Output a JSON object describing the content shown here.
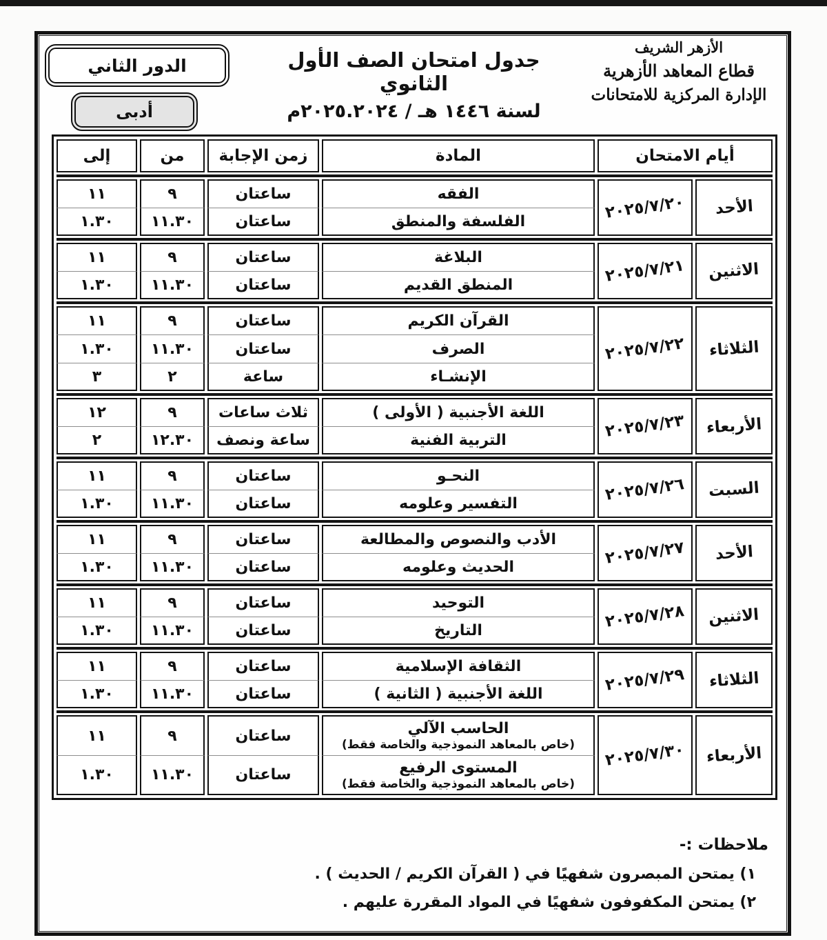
{
  "page": {
    "round_label": "الدور الثاني",
    "track_label": "أدبى",
    "title_line1": "جدول امتحان الصف الأول الثانوي",
    "title_line2": "لسنة ١٤٤٦ هـ / ٢٠٢٥.٢٠٢٤م",
    "org": {
      "line1": "الأزهر الشريف",
      "line2": "قطاع المعاهد الأزهرية",
      "line3": "الإدارة المركزية للامتحانات"
    }
  },
  "table": {
    "headers": {
      "days": "أيام الامتحان",
      "subject": "المادة",
      "duration": "زمن الإجابة",
      "from": "من",
      "to": "إلى"
    },
    "groups": [
      {
        "day": "الأحد",
        "date": "٢٠٢٥/٧/٢٠",
        "rows": [
          {
            "subject": "الفقه",
            "duration": "ساعتان",
            "from": "٩",
            "to": "١١"
          },
          {
            "subject": "الفلسفة والمنطق",
            "duration": "ساعتان",
            "from": "١١.٣٠",
            "to": "١.٣٠"
          }
        ]
      },
      {
        "day": "الاثنين",
        "date": "٢٠٢٥/٧/٢١",
        "rows": [
          {
            "subject": "البلاغة",
            "duration": "ساعتان",
            "from": "٩",
            "to": "١١"
          },
          {
            "subject": "المنطق القديم",
            "duration": "ساعتان",
            "from": "١١.٣٠",
            "to": "١.٣٠"
          }
        ]
      },
      {
        "day": "الثلاثاء",
        "date": "٢٠٢٥/٧/٢٢",
        "rows": [
          {
            "subject": "القرآن الكريم",
            "duration": "ساعتان",
            "from": "٩",
            "to": "١١"
          },
          {
            "subject": "الصرف",
            "duration": "ساعتان",
            "from": "١١.٣٠",
            "to": "١.٣٠"
          },
          {
            "subject": "الإنشـاء",
            "duration": "ساعة",
            "from": "٢",
            "to": "٣"
          }
        ]
      },
      {
        "day": "الأربعاء",
        "date": "٢٠٢٥/٧/٢٣",
        "rows": [
          {
            "subject": "اللغة الأجنبية ( الأولى )",
            "duration": "ثلاث ساعات",
            "from": "٩",
            "to": "١٢"
          },
          {
            "subject": "التربية الفنية",
            "duration": "ساعة ونصف",
            "from": "١٢.٣٠",
            "to": "٢"
          }
        ]
      },
      {
        "day": "السبت",
        "date": "٢٠٢٥/٧/٢٦",
        "rows": [
          {
            "subject": "النحـو",
            "duration": "ساعتان",
            "from": "٩",
            "to": "١١"
          },
          {
            "subject": "التفسير وعلومه",
            "duration": "ساعتان",
            "from": "١١.٣٠",
            "to": "١.٣٠"
          }
        ]
      },
      {
        "day": "الأحد",
        "date": "٢٠٢٥/٧/٢٧",
        "rows": [
          {
            "subject": "الأدب والنصوص والمطالعة",
            "duration": "ساعتان",
            "from": "٩",
            "to": "١١"
          },
          {
            "subject": "الحديث وعلومه",
            "duration": "ساعتان",
            "from": "١١.٣٠",
            "to": "١.٣٠"
          }
        ]
      },
      {
        "day": "الاثنين",
        "date": "٢٠٢٥/٧/٢٨",
        "rows": [
          {
            "subject": "التوحيد",
            "duration": "ساعتان",
            "from": "٩",
            "to": "١١"
          },
          {
            "subject": "التاريخ",
            "duration": "ساعتان",
            "from": "١١.٣٠",
            "to": "١.٣٠"
          }
        ]
      },
      {
        "day": "الثلاثاء",
        "date": "٢٠٢٥/٧/٢٩",
        "rows": [
          {
            "subject": "الثقافة الإسلامية",
            "duration": "ساعتان",
            "from": "٩",
            "to": "١١"
          },
          {
            "subject": "اللغة الأجنبية ( الثانية )",
            "duration": "ساعتان",
            "from": "١١.٣٠",
            "to": "١.٣٠"
          }
        ]
      },
      {
        "day": "الأربعاء",
        "date": "٢٠٢٥/٧/٣٠",
        "rows": [
          {
            "subject": "الحاسب الآلي",
            "note": "(خاص بالمعاهد النموذجية والخاصة فقط)",
            "duration": "ساعتان",
            "from": "٩",
            "to": "١١"
          },
          {
            "subject": "المستوى الرفيع",
            "note": "(خاص بالمعاهد النموذجية والخاصة فقط)",
            "duration": "ساعتان",
            "from": "١١.٣٠",
            "to": "١.٣٠"
          }
        ]
      }
    ]
  },
  "notes": {
    "heading": "ملاحظات :-",
    "items": [
      "١) يمتحن المبصرون شفهيًا في ( القرآن الكريم / الحديث ) .",
      "٢) يمتحن المكفوفون شفهيًا في المواد المقررة عليهم ."
    ]
  },
  "colors": {
    "ink": "#121212",
    "track_badge_fill": "#e4e4e4",
    "thin_divider": "#8d8d8d",
    "paper": "#fefefe"
  }
}
